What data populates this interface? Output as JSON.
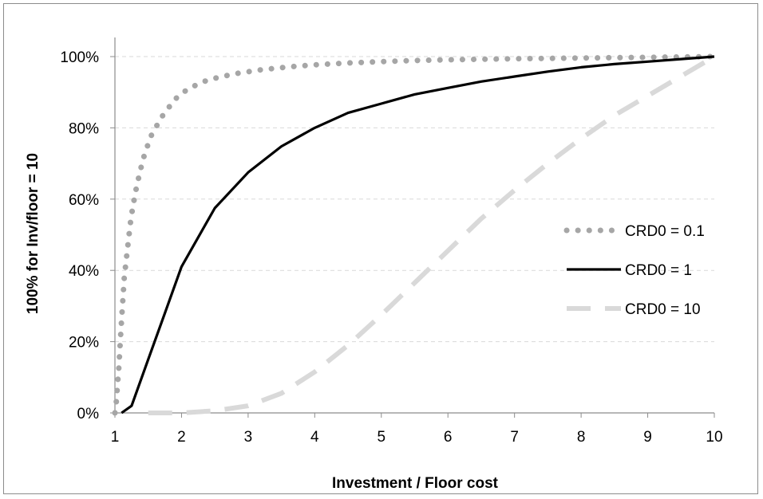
{
  "chart_data": {
    "type": "line",
    "xlabel": "Investment / Floor cost",
    "ylabel": "100%  for  Inv/floor = 10",
    "xlim": [
      1,
      10
    ],
    "ylim": [
      0,
      100
    ],
    "x_ticks": [
      1,
      2,
      3,
      4,
      5,
      6,
      7,
      8,
      9,
      10
    ],
    "y_ticks": [
      0,
      20,
      40,
      60,
      80,
      100
    ],
    "y_tick_labels": [
      "0%",
      "20%",
      "40%",
      "60%",
      "80%",
      "100%"
    ],
    "grid": "horizontal dashed",
    "legend_position": "right-middle",
    "series": [
      {
        "name": "CRD0 = 0.1",
        "color": "#a6a6a6",
        "style": "dotted",
        "points": [
          [
            1.0,
            0
          ],
          [
            1.02,
            3
          ],
          [
            1.04,
            8
          ],
          [
            1.06,
            13
          ],
          [
            1.08,
            20
          ],
          [
            1.1,
            26
          ],
          [
            1.12,
            32
          ],
          [
            1.14,
            38
          ],
          [
            1.17,
            43
          ],
          [
            1.2,
            48
          ],
          [
            1.23,
            53
          ],
          [
            1.27,
            58
          ],
          [
            1.32,
            63
          ],
          [
            1.38,
            68
          ],
          [
            1.45,
            73
          ],
          [
            1.55,
            78
          ],
          [
            1.7,
            83
          ],
          [
            1.9,
            88
          ],
          [
            2.1,
            91
          ],
          [
            2.4,
            93.5
          ],
          [
            2.8,
            95.2
          ],
          [
            3.2,
            96.3
          ],
          [
            3.6,
            97.1
          ],
          [
            4.0,
            97.7
          ],
          [
            4.5,
            98.2
          ],
          [
            5.0,
            98.6
          ],
          [
            5.5,
            98.9
          ],
          [
            6.0,
            99.1
          ],
          [
            7.0,
            99.4
          ],
          [
            8.0,
            99.6
          ],
          [
            9.0,
            99.8
          ],
          [
            10.0,
            100
          ]
        ]
      },
      {
        "name": "CRD0 = 1",
        "color": "#000000",
        "style": "solid",
        "points": [
          [
            1.1,
            0
          ],
          [
            1.25,
            2
          ],
          [
            1.5,
            15
          ],
          [
            1.75,
            28
          ],
          [
            2.0,
            41
          ],
          [
            2.5,
            57.5
          ],
          [
            3.0,
            67.5
          ],
          [
            3.5,
            74.8
          ],
          [
            4.0,
            80
          ],
          [
            4.5,
            84.2
          ],
          [
            5.0,
            86.8
          ],
          [
            5.5,
            89.4
          ],
          [
            6.0,
            91.2
          ],
          [
            6.5,
            93
          ],
          [
            7.0,
            94.4
          ],
          [
            7.5,
            95.8
          ],
          [
            8.0,
            97
          ],
          [
            8.5,
            97.9
          ],
          [
            9.0,
            98.6
          ],
          [
            9.5,
            99.3
          ],
          [
            10.0,
            100
          ]
        ]
      },
      {
        "name": "CRD0 = 10",
        "color": "#d9d9d9",
        "style": "dashed",
        "points": [
          [
            1.5,
            0
          ],
          [
            2.0,
            0
          ],
          [
            2.5,
            0.6
          ],
          [
            3.0,
            2
          ],
          [
            3.5,
            5.5
          ],
          [
            4.0,
            11.5
          ],
          [
            4.5,
            19
          ],
          [
            5.0,
            27.5
          ],
          [
            5.5,
            36.5
          ],
          [
            6.0,
            45.5
          ],
          [
            6.5,
            54.5
          ],
          [
            7.0,
            62.5
          ],
          [
            7.5,
            70
          ],
          [
            8.0,
            77
          ],
          [
            8.5,
            83.5
          ],
          [
            9.0,
            89
          ],
          [
            9.5,
            94.5
          ],
          [
            10.0,
            100
          ]
        ]
      }
    ]
  }
}
